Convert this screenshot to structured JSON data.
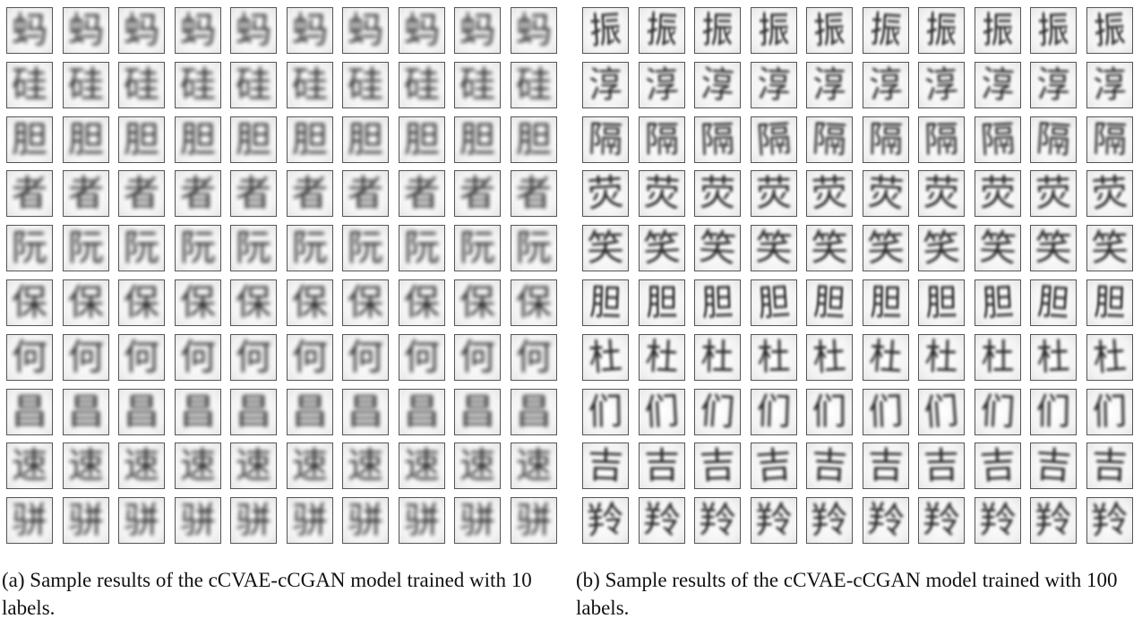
{
  "panels": [
    {
      "caption": "(a) Sample results of the cCVAE-cCGAN model trained with 10 labels.",
      "rows": [
        "蚂",
        "硅",
        "胆",
        "者",
        "阮",
        "保",
        "何",
        "昌",
        "速",
        "骈"
      ]
    },
    {
      "caption": "(b) Sample results of the cCVAE-cCGAN model trained with 100 labels.",
      "rows": [
        "振",
        "淳",
        "隔",
        "荧",
        "笑",
        "胆",
        "杜",
        "们",
        "吉",
        "羚"
      ]
    }
  ]
}
